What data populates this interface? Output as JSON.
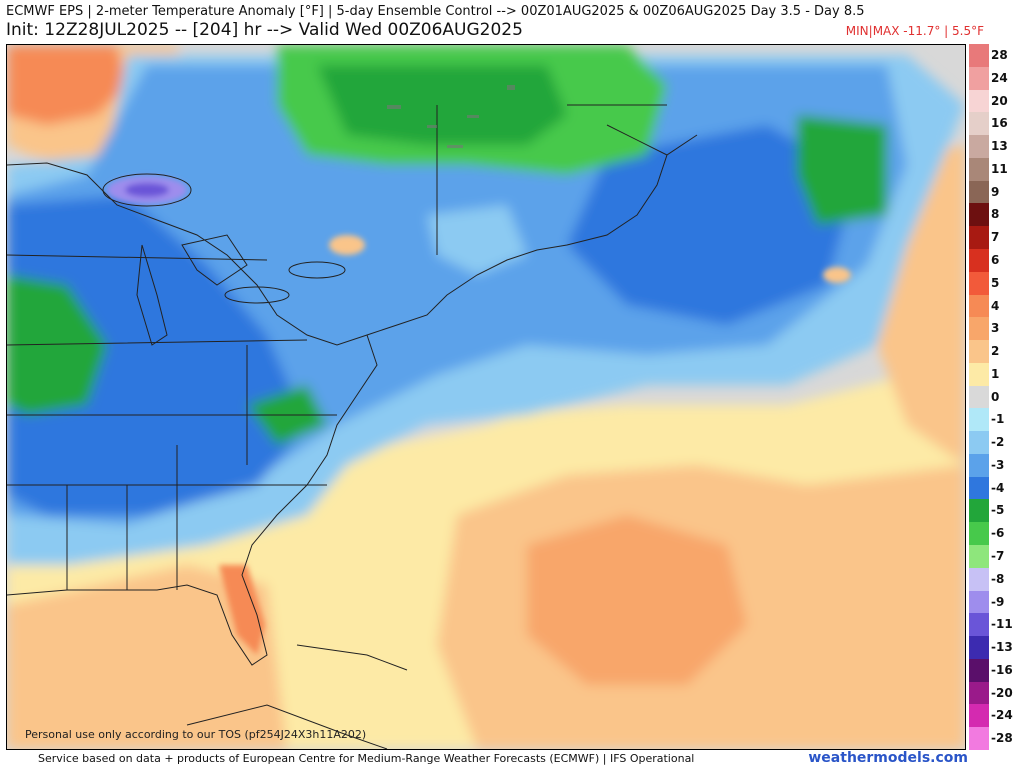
{
  "header": {
    "title_line1": "ECMWF EPS | 2-meter Temperature Anomaly [°F] | 5-day Ensemble Control --> 00Z01AUG2025 & 00Z06AUG2025  Day 3.5 - Day 8.5",
    "title_line2": "Init: 12Z28JUL2025 -- [204] hr --> Valid Wed 00Z06AUG2025",
    "minmax": "MIN|MAX -11.7° | 5.5°F"
  },
  "map": {
    "tos_notice": "Personal use only according to our TOS (pf254J24X3h11A202)"
  },
  "colorbar": {
    "items": [
      {
        "label": "28",
        "color": "#e8797a"
      },
      {
        "label": "24",
        "color": "#f0a0a0"
      },
      {
        "label": "20",
        "color": "#f7d4d4"
      },
      {
        "label": "16",
        "color": "#e5cfc9"
      },
      {
        "label": "13",
        "color": "#c9a9a0"
      },
      {
        "label": "11",
        "color": "#a98778"
      },
      {
        "label": "9",
        "color": "#8a6656"
      },
      {
        "label": "8",
        "color": "#6d1010"
      },
      {
        "label": "7",
        "color": "#a81a12"
      },
      {
        "label": "6",
        "color": "#d8301f"
      },
      {
        "label": "5",
        "color": "#f25a3a"
      },
      {
        "label": "4",
        "color": "#f68a55"
      },
      {
        "label": "3",
        "color": "#f8a66a"
      },
      {
        "label": "2",
        "color": "#fac58a"
      },
      {
        "label": "1",
        "color": "#fdeaa6"
      },
      {
        "label": "0",
        "color": "#d9d9d9"
      },
      {
        "label": "-1",
        "color": "#b0e8f8"
      },
      {
        "label": "-2",
        "color": "#8ccaf2"
      },
      {
        "label": "-3",
        "color": "#5ba2ea"
      },
      {
        "label": "-4",
        "color": "#2f77de"
      },
      {
        "label": "-5",
        "color": "#22a63a"
      },
      {
        "label": "-6",
        "color": "#47c94b"
      },
      {
        "label": "-7",
        "color": "#8ee67c"
      },
      {
        "label": "-8",
        "color": "#c7c1f5"
      },
      {
        "label": "-9",
        "color": "#9e8ded"
      },
      {
        "label": "-11",
        "color": "#6a55d8"
      },
      {
        "label": "-13",
        "color": "#3c2bb0"
      },
      {
        "label": "-16",
        "color": "#5a0f6a"
      },
      {
        "label": "-20",
        "color": "#9a1a8a"
      },
      {
        "label": "-24",
        "color": "#d42ab0"
      },
      {
        "label": "-28",
        "color": "#f27ae0"
      }
    ]
  },
  "footer": {
    "credit": "Service based on data + products of European Centre for Medium-Range Weather Forecasts (ECMWF) | IFS Operational",
    "brand": "weathermodels.com"
  },
  "colors": {
    "title_text": "#111111",
    "minmax_text": "#e03030",
    "brand_text": "#2a55c8",
    "no_anomaly": "#d8d8d8"
  }
}
